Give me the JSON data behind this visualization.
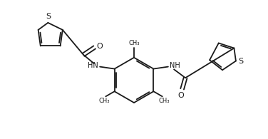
{
  "bg_color": "#ffffff",
  "line_color": "#1a1a1a",
  "line_width": 1.3,
  "figsize": [
    3.76,
    1.95
  ],
  "dpi": 100,
  "xlim": [
    0,
    10
  ],
  "ylim": [
    0,
    5.2
  ]
}
